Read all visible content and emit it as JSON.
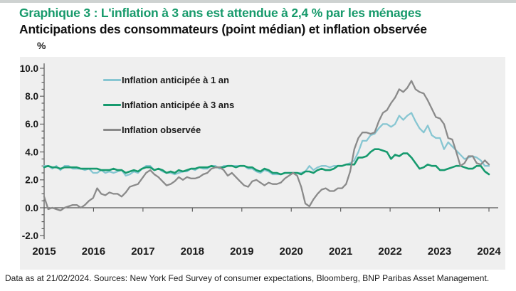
{
  "page": {
    "top_strip_color": "#ced2d1",
    "background": "#ffffff"
  },
  "chart_data": {
    "type": "line",
    "title": "Graphique 3 : L'inflation à 3 ans est attendue à 2,4 % par les ménages",
    "subtitle": "Anticipations des consommateurs (point médian) et inflation observée",
    "ylabel": "%",
    "xlabel": "",
    "ylim": [
      -2,
      10
    ],
    "y_ticks": [
      10,
      8,
      6,
      4,
      2,
      0,
      -2
    ],
    "y_tick_labels": [
      "10.0",
      "8.0",
      "6.0",
      "4.0",
      "2.0",
      "0.0",
      "-2.0"
    ],
    "y_minor_step": 0.5,
    "x_tick_labels": [
      "2015",
      "2016",
      "2017",
      "2018",
      "2019",
      "2020",
      "2021",
      "2022",
      "2023",
      "2024"
    ],
    "x_range_start": "2014-12",
    "x_range_end": "2024-01",
    "frequency": "monthly",
    "grid": false,
    "legend_position": "inside-top-left",
    "plot_bg": "#efefef",
    "axis_color": "#555555",
    "series": [
      {
        "name": "Inflation anticipée à 1 an",
        "color": "#87c6d2",
        "values": [
          3.0,
          3.0,
          2.8,
          3.0,
          2.7,
          3.0,
          3.0,
          2.8,
          2.8,
          2.8,
          2.7,
          2.8,
          2.5,
          2.5,
          2.7,
          2.5,
          2.6,
          2.5,
          2.6,
          2.7,
          2.3,
          2.4,
          2.6,
          2.5,
          2.8,
          3.0,
          3.0,
          2.7,
          2.8,
          2.6,
          2.5,
          2.5,
          2.4,
          2.5,
          2.6,
          2.6,
          2.8,
          2.7,
          2.9,
          2.8,
          2.8,
          3.0,
          3.0,
          2.8,
          3.0,
          3.0,
          3.0,
          3.0,
          3.0,
          3.0,
          2.8,
          2.8,
          2.6,
          2.5,
          2.7,
          2.6,
          2.4,
          2.4,
          2.4,
          2.5,
          2.5,
          2.5,
          2.5,
          2.5,
          2.6,
          3.0,
          2.7,
          2.9,
          3.0,
          3.0,
          2.9,
          3.0,
          3.0,
          3.0,
          3.1,
          3.2,
          3.4,
          4.0,
          4.8,
          4.8,
          5.2,
          5.3,
          5.7,
          6.0,
          6.0,
          5.8,
          6.0,
          6.6,
          6.3,
          6.6,
          6.8,
          6.2,
          5.7,
          5.4,
          5.9,
          5.2,
          5.0,
          5.0,
          4.2,
          4.7,
          4.4,
          4.1,
          3.8,
          3.5,
          3.6,
          3.7,
          3.6,
          3.4,
          3.0,
          3.0
        ]
      },
      {
        "name": "Inflation anticipée à 3 ans",
        "color": "#169a6e",
        "values": [
          2.9,
          3.0,
          2.9,
          2.9,
          2.8,
          2.9,
          2.9,
          2.9,
          2.9,
          2.8,
          2.8,
          2.8,
          2.8,
          2.8,
          2.7,
          2.7,
          2.7,
          2.8,
          2.7,
          2.7,
          2.5,
          2.6,
          2.7,
          2.6,
          2.8,
          2.9,
          2.9,
          2.7,
          2.8,
          2.7,
          2.5,
          2.6,
          2.5,
          2.7,
          2.6,
          2.7,
          2.8,
          2.8,
          2.9,
          2.9,
          2.9,
          3.0,
          2.9,
          2.9,
          2.9,
          3.0,
          3.0,
          2.9,
          3.0,
          3.0,
          2.9,
          2.9,
          2.7,
          2.6,
          2.8,
          2.7,
          2.5,
          2.5,
          2.4,
          2.5,
          2.5,
          2.5,
          2.5,
          2.4,
          2.6,
          2.6,
          2.5,
          2.7,
          2.8,
          2.7,
          2.7,
          2.8,
          3.0,
          3.0,
          3.1,
          3.1,
          3.1,
          3.6,
          3.6,
          3.7,
          4.0,
          4.2,
          4.2,
          4.1,
          4.0,
          3.5,
          3.8,
          3.7,
          3.9,
          3.9,
          3.6,
          3.2,
          2.8,
          2.9,
          3.1,
          3.0,
          3.0,
          2.7,
          2.7,
          2.8,
          2.9,
          3.0,
          3.0,
          2.9,
          2.8,
          2.8,
          3.0,
          3.0,
          2.6,
          2.4
        ]
      },
      {
        "name": "Inflation observée",
        "color": "#8a8a8a",
        "values": [
          0.8,
          -0.1,
          0.0,
          -0.1,
          -0.2,
          0.0,
          0.1,
          0.2,
          0.2,
          0.0,
          0.2,
          0.5,
          0.7,
          1.4,
          1.0,
          0.9,
          1.1,
          1.0,
          1.0,
          0.8,
          1.1,
          1.5,
          1.6,
          1.7,
          2.1,
          2.5,
          2.7,
          2.4,
          2.2,
          1.9,
          1.6,
          1.7,
          1.9,
          2.2,
          2.0,
          2.2,
          2.1,
          2.1,
          2.2,
          2.4,
          2.5,
          2.8,
          2.9,
          2.9,
          2.7,
          2.3,
          2.5,
          2.2,
          1.9,
          1.6,
          1.5,
          1.9,
          2.0,
          1.8,
          1.6,
          1.8,
          1.7,
          1.7,
          1.8,
          2.1,
          2.3,
          2.5,
          2.3,
          1.5,
          0.3,
          0.1,
          0.6,
          1.0,
          1.3,
          1.4,
          1.2,
          1.2,
          1.4,
          1.4,
          1.7,
          2.6,
          4.2,
          5.0,
          5.4,
          5.4,
          5.3,
          5.4,
          6.2,
          6.8,
          7.0,
          7.5,
          7.9,
          8.5,
          8.3,
          8.6,
          9.1,
          8.5,
          8.3,
          8.2,
          7.7,
          7.1,
          6.5,
          6.4,
          6.0,
          5.0,
          4.9,
          4.0,
          3.0,
          3.2,
          3.7,
          3.7,
          3.2,
          3.1,
          3.4,
          3.1
        ]
      }
    ]
  },
  "footer": {
    "note": "Data as at 21/02/2024. Sources: New York Fed Survey of consumer expectations, Bloomberg, BNP Paribas Asset Management."
  }
}
